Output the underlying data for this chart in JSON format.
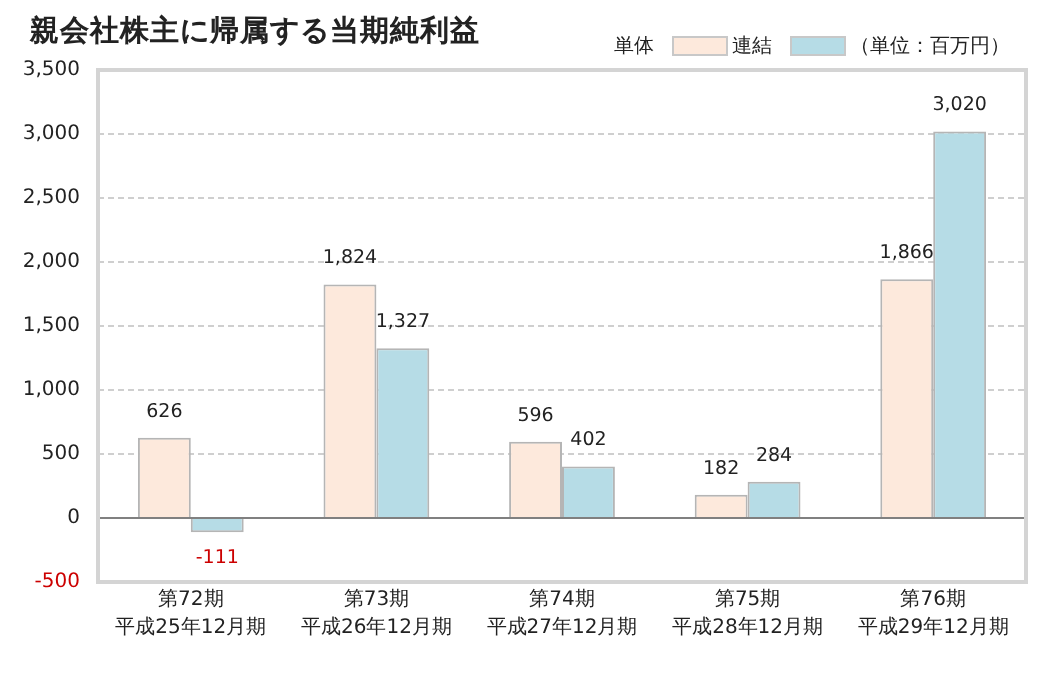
{
  "chart_data": {
    "type": "bar",
    "title": "親会社株主に帰属する当期純利益",
    "categories": [
      "第72期平成25年12月期",
      "第73期平成26年12月期",
      "第74期平成27年12月期",
      "第75期平成28年12月期",
      "第76期平成29年12月期"
    ],
    "series": [
      {
        "name": "単体",
        "color": "#fde9dc",
        "values": [
          626,
          1824,
          596,
          182,
          1866
        ],
        "value_labels": [
          "626",
          "1,824",
          "596",
          "182",
          "1,866"
        ]
      },
      {
        "name": "連結",
        "color": "#b6dce6",
        "values": [
          -111,
          1327,
          402,
          284,
          3020
        ],
        "value_labels": [
          "-111",
          "1,327",
          "402",
          "284",
          "3,020"
        ]
      }
    ],
    "ylim": [
      -500,
      3500
    ],
    "yticks": [
      -500,
      0,
      500,
      {
        "value": 1000,
        "label": "1,000"
      },
      {
        "value": 1500,
        "label": "1,500"
      },
      {
        "value": 2000,
        "label": "2,000"
      },
      {
        "value": 2500,
        "label": "2,500"
      },
      {
        "value": 3000,
        "label": "3,000"
      },
      {
        "value": 3500,
        "label": "3,500"
      }
    ],
    "grid": "y",
    "legend": "top right",
    "annotations": [
      "（単位：百万円）"
    ]
  }
}
